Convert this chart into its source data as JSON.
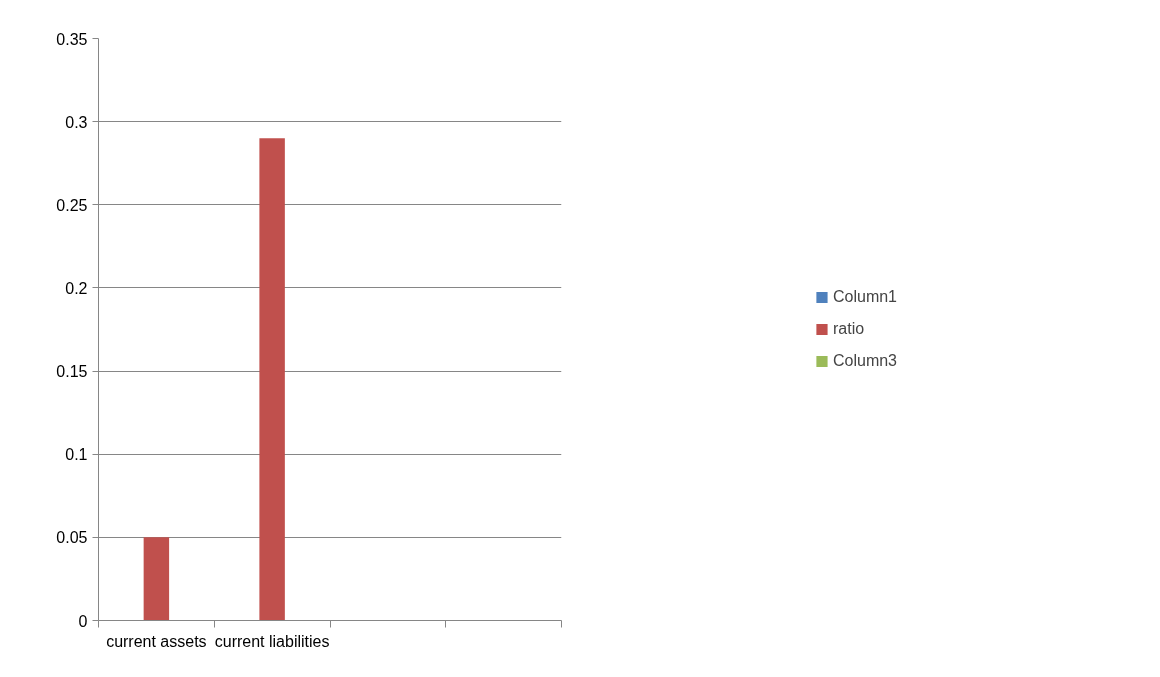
{
  "chart_data": {
    "type": "bar",
    "categories": [
      "current assets",
      "current liabilities",
      null,
      null
    ],
    "series": [
      {
        "name": "Column1",
        "color": "#4f81bd",
        "values": [
          null,
          null,
          null,
          null
        ]
      },
      {
        "name": "ratio",
        "color": "#c0504d",
        "values": [
          0.05,
          0.29,
          null,
          null
        ]
      },
      {
        "name": "Column3",
        "color": "#9bbb59",
        "values": [
          null,
          null,
          null,
          null
        ]
      }
    ],
    "ylim": [
      0,
      0.35
    ],
    "yticks": [
      0,
      0.05,
      0.1,
      0.15,
      0.2,
      0.25,
      0.3,
      0.35
    ],
    "grid": "y",
    "legend": "right"
  }
}
